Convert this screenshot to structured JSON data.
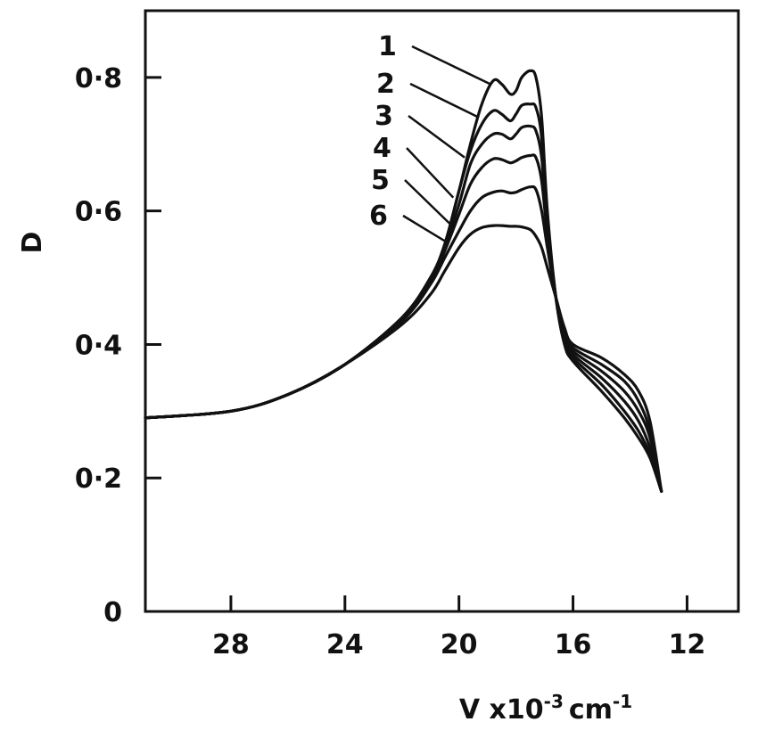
{
  "chart_data": {
    "type": "line",
    "xlabel": "V x10",
    "xlabel_exponent": "-3",
    "xlabel_unit": "cm",
    "xlabel_unit_exponent": "-1",
    "ylabel": "D",
    "xlim": [
      31,
      10.2
    ],
    "ylim": [
      0,
      0.9
    ],
    "x_reversed": true,
    "grid": false,
    "x_ticks": [
      28,
      24,
      20,
      16,
      12
    ],
    "y_ticks": [
      0,
      0.2,
      0.4,
      0.6,
      0.8
    ],
    "y_tick_labels": [
      "0",
      "0·2",
      "0·4",
      "0·6",
      "0·8"
    ],
    "x_tick_labels": [
      "28",
      "24",
      "20",
      "16",
      "12"
    ],
    "series": [
      {
        "name": "1",
        "x": [
          31,
          28,
          26,
          24,
          22,
          21,
          20.5,
          20,
          19.6,
          19.2,
          18.8,
          18.5,
          18.2,
          18.0,
          17.8,
          17.5,
          17.3,
          17.1,
          16.9,
          16.6,
          16.3,
          16,
          15,
          14.2,
          13.7,
          13.3,
          12.9
        ],
        "y": [
          0.29,
          0.3,
          0.325,
          0.37,
          0.44,
          0.5,
          0.55,
          0.63,
          0.7,
          0.76,
          0.795,
          0.79,
          0.775,
          0.78,
          0.8,
          0.81,
          0.8,
          0.74,
          0.6,
          0.47,
          0.4,
          0.375,
          0.33,
          0.29,
          0.26,
          0.23,
          0.18
        ]
      },
      {
        "name": "2",
        "x": [
          31,
          28,
          26,
          24,
          22,
          21,
          20.5,
          20,
          19.6,
          19.2,
          18.8,
          18.5,
          18.2,
          18.0,
          17.8,
          17.5,
          17.3,
          17.1,
          16.9,
          16.6,
          16.3,
          16,
          15,
          14.2,
          13.7,
          13.3,
          12.9
        ],
        "y": [
          0.29,
          0.3,
          0.325,
          0.37,
          0.44,
          0.5,
          0.55,
          0.63,
          0.69,
          0.73,
          0.75,
          0.745,
          0.735,
          0.745,
          0.758,
          0.76,
          0.755,
          0.71,
          0.59,
          0.47,
          0.405,
          0.38,
          0.34,
          0.3,
          0.27,
          0.235,
          0.18
        ]
      },
      {
        "name": "3",
        "x": [
          31,
          28,
          26,
          24,
          22,
          21,
          20.5,
          20,
          19.6,
          19.2,
          18.8,
          18.5,
          18.2,
          18.0,
          17.8,
          17.5,
          17.3,
          17.1,
          16.9,
          16.6,
          16.3,
          16,
          15,
          14.2,
          13.7,
          13.3,
          12.9
        ],
        "y": [
          0.29,
          0.3,
          0.325,
          0.37,
          0.44,
          0.5,
          0.545,
          0.61,
          0.67,
          0.7,
          0.715,
          0.715,
          0.708,
          0.715,
          0.725,
          0.727,
          0.72,
          0.68,
          0.58,
          0.47,
          0.41,
          0.385,
          0.35,
          0.315,
          0.285,
          0.245,
          0.18
        ]
      },
      {
        "name": "4",
        "x": [
          31,
          28,
          26,
          24,
          22,
          21,
          20.5,
          20,
          19.6,
          19.2,
          18.8,
          18.5,
          18.2,
          18.0,
          17.8,
          17.5,
          17.3,
          17.1,
          16.9,
          16.6,
          16.3,
          16,
          15,
          14.2,
          13.7,
          13.3,
          12.9
        ],
        "y": [
          0.29,
          0.3,
          0.325,
          0.37,
          0.44,
          0.495,
          0.54,
          0.595,
          0.64,
          0.665,
          0.678,
          0.677,
          0.672,
          0.675,
          0.68,
          0.683,
          0.68,
          0.645,
          0.565,
          0.47,
          0.415,
          0.39,
          0.36,
          0.33,
          0.3,
          0.26,
          0.18
        ]
      },
      {
        "name": "5",
        "x": [
          31,
          28,
          26,
          24,
          22,
          21,
          20.5,
          20,
          19.6,
          19.2,
          18.8,
          18.5,
          18.2,
          18.0,
          17.8,
          17.5,
          17.3,
          17.1,
          16.9,
          16.6,
          16.3,
          16,
          15,
          14.2,
          13.7,
          13.3,
          12.9
        ],
        "y": [
          0.29,
          0.3,
          0.325,
          0.37,
          0.435,
          0.49,
          0.53,
          0.57,
          0.6,
          0.62,
          0.628,
          0.63,
          0.627,
          0.628,
          0.632,
          0.636,
          0.632,
          0.6,
          0.545,
          0.47,
          0.42,
          0.395,
          0.37,
          0.345,
          0.315,
          0.27,
          0.18
        ]
      },
      {
        "name": "6",
        "x": [
          31,
          28,
          26,
          24,
          22,
          21,
          20.5,
          20,
          19.6,
          19.2,
          18.8,
          18.5,
          18.2,
          18.0,
          17.8,
          17.5,
          17.3,
          17.1,
          16.9,
          16.6,
          16.3,
          16,
          15,
          14.2,
          13.7,
          13.3,
          12.9
        ],
        "y": [
          0.29,
          0.3,
          0.325,
          0.37,
          0.43,
          0.475,
          0.51,
          0.545,
          0.565,
          0.575,
          0.578,
          0.578,
          0.577,
          0.577,
          0.576,
          0.572,
          0.562,
          0.545,
          0.515,
          0.47,
          0.425,
          0.4,
          0.38,
          0.355,
          0.33,
          0.285,
          0.18
        ]
      }
    ]
  }
}
